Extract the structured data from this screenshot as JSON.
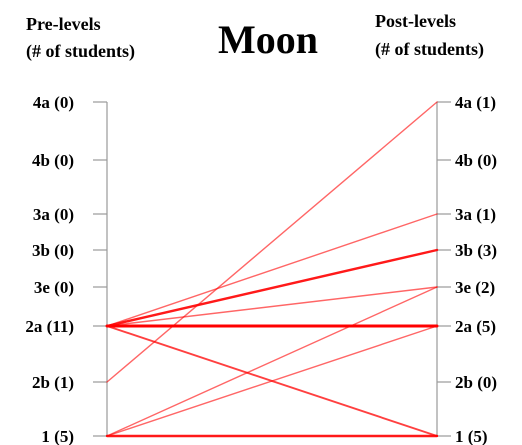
{
  "chart_data": {
    "type": "line",
    "title": "Moon",
    "left_axis": {
      "header_line1": "Pre-levels",
      "header_line2": "(# of students)",
      "levels": [
        {
          "label": "4a (0)",
          "level": "4a",
          "count": 0
        },
        {
          "label": "4b (0)",
          "level": "4b",
          "count": 0
        },
        {
          "label": "3a (0)",
          "level": "3a",
          "count": 0
        },
        {
          "label": "3b (0)",
          "level": "3b",
          "count": 0
        },
        {
          "label": "3e (0)",
          "level": "3e",
          "count": 0
        },
        {
          "label": "2a (11)",
          "level": "2a",
          "count": 11
        },
        {
          "label": "2b (1)",
          "level": "2b",
          "count": 1
        },
        {
          "label": "1 (5)",
          "level": "1",
          "count": 5
        }
      ]
    },
    "right_axis": {
      "header_line1": "Post-levels",
      "header_line2": "(# of students)",
      "levels": [
        {
          "label": "4a (1)",
          "level": "4a",
          "count": 1
        },
        {
          "label": "4b (0)",
          "level": "4b",
          "count": 0
        },
        {
          "label": "3a (1)",
          "level": "3a",
          "count": 1
        },
        {
          "label": "3b (3)",
          "level": "3b",
          "count": 3
        },
        {
          "label": "3e (2)",
          "level": "3e",
          "count": 2
        },
        {
          "label": "2a (5)",
          "level": "2a",
          "count": 5
        },
        {
          "label": "2b (0)",
          "level": "2b",
          "count": 0
        },
        {
          "label": "1 (5)",
          "level": "1",
          "count": 5
        }
      ]
    },
    "transitions": [
      {
        "from": "2a",
        "to": "3a",
        "students": 1
      },
      {
        "from": "2a",
        "to": "3b",
        "students": 3
      },
      {
        "from": "2a",
        "to": "3e",
        "students": 1
      },
      {
        "from": "2a",
        "to": "2a",
        "students": 4
      },
      {
        "from": "2a",
        "to": "1",
        "students": 2
      },
      {
        "from": "2b",
        "to": "4a",
        "students": 1
      },
      {
        "from": "1",
        "to": "3e",
        "students": 1
      },
      {
        "from": "1",
        "to": "2a",
        "students": 1
      },
      {
        "from": "1",
        "to": "1",
        "students": 3
      }
    ],
    "line_color": "#ff0000",
    "axis_color": "#999999"
  }
}
